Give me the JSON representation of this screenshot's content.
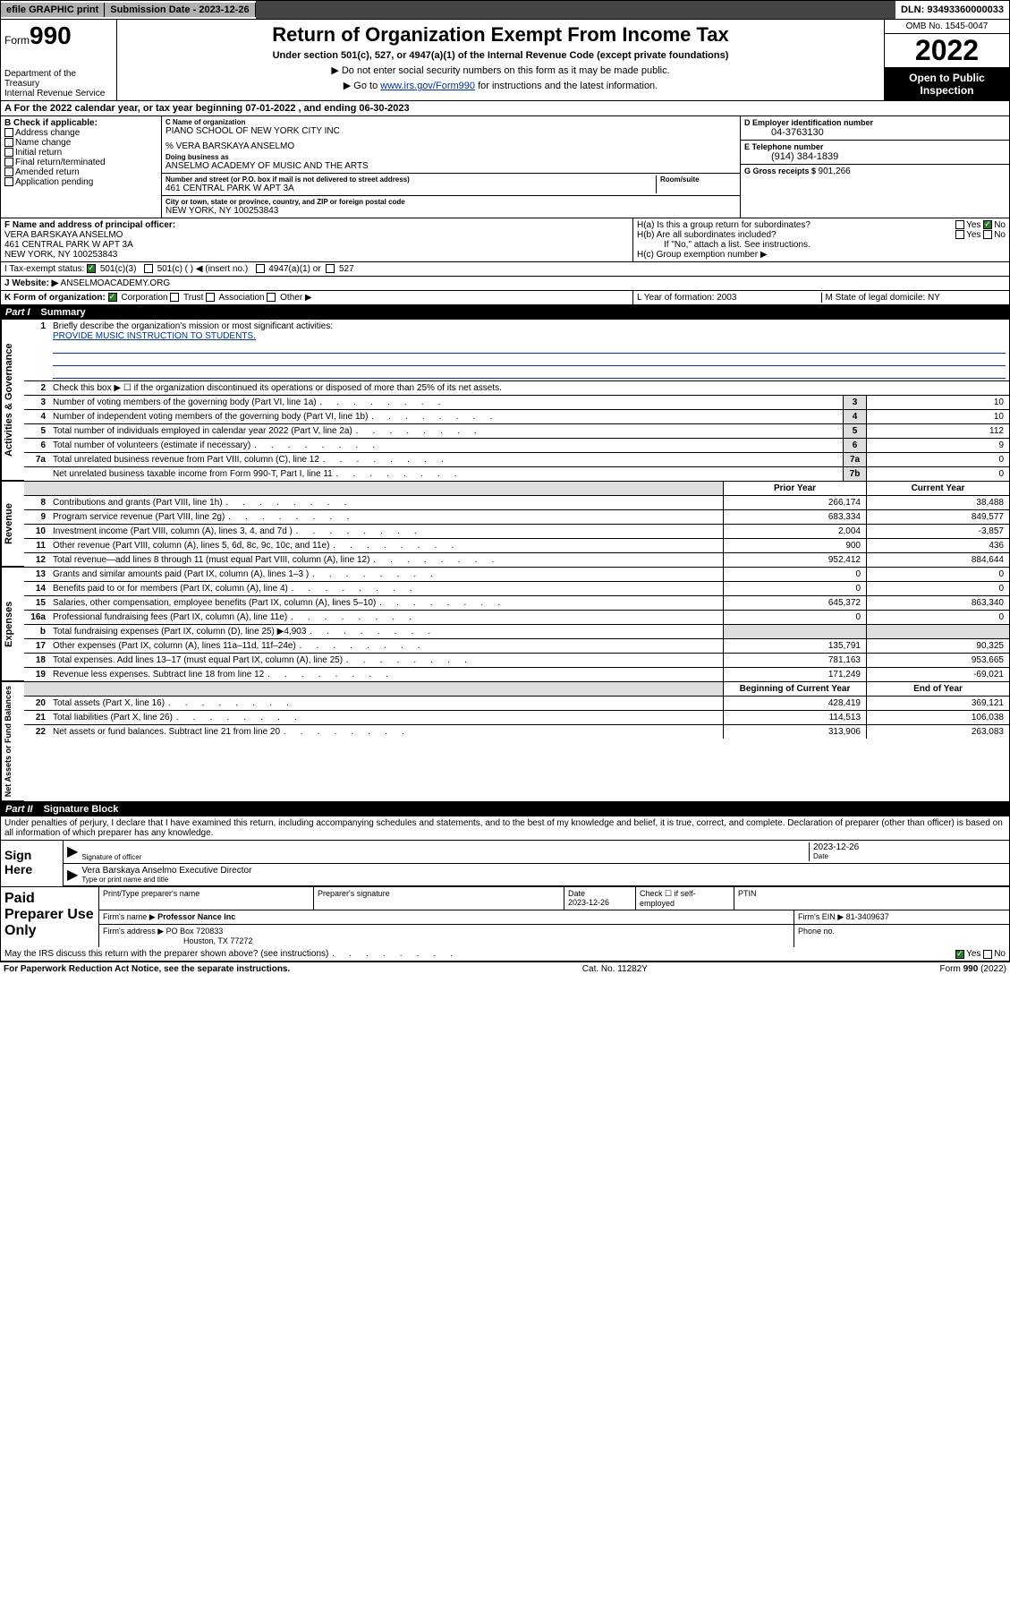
{
  "topbar": {
    "efile": "efile GRAPHIC print",
    "sub_label": "Submission Date - ",
    "sub_date": "2023-12-26",
    "dln": "DLN: 93493360000033"
  },
  "hdr": {
    "form_word": "Form",
    "form_num": "990",
    "dept": "Department of the Treasury\nInternal Revenue Service",
    "title": "Return of Organization Exempt From Income Tax",
    "sub1": "Under section 501(c), 527, or 4947(a)(1) of the Internal Revenue Code (except private foundations)",
    "sub2": "Do not enter social security numbers on this form as it may be made public.",
    "sub3_pre": "Go to ",
    "sub3_link": "www.irs.gov/Form990",
    "sub3_post": " for instructions and the latest information.",
    "omb": "OMB No. 1545-0047",
    "year": "2022",
    "open": "Open to Public Inspection"
  },
  "lineA": "A For the 2022 calendar year, or tax year beginning 07-01-2022   , and ending 06-30-2023",
  "checkB": {
    "label": "B Check if applicable:",
    "items": [
      "Address change",
      "Name change",
      "Initial return",
      "Final return/terminated",
      "Amended return",
      "Application pending"
    ]
  },
  "nameblock": {
    "c_label": "C Name of organization",
    "c_val": "PIANO SCHOOL OF NEW YORK CITY INC",
    "care": "% VERA BARSKAYA ANSELMO",
    "dba_label": "Doing business as",
    "dba_val": "ANSELMO ACADEMY OF MUSIC AND THE ARTS",
    "addr_label": "Number and street (or P.O. box if mail is not delivered to street address)",
    "addr_val": "461 CENTRAL PARK W APT 3A",
    "room_label": "Room/suite",
    "city_label": "City or town, state or province, country, and ZIP or foreign postal code",
    "city_val": "NEW YORK, NY  100253843",
    "f_label": "F Name and address of principal officer:",
    "f_val": "VERA BARSKAYA ANSELMO\n461 CENTRAL PARK W APT 3A\nNEW YORK, NY  100253843"
  },
  "rightcol": {
    "d_label": "D Employer identification number",
    "d_val": "04-3763130",
    "e_label": "E Telephone number",
    "e_val": "(914) 384-1839",
    "g_label": "G Gross receipts $ ",
    "g_val": "901,266",
    "ha": "H(a)  Is this a group return for subordinates?",
    "hb": "H(b)  Are all subordinates included?",
    "h_note": "If \"No,\" attach a list. See instructions.",
    "hc": "H(c)  Group exemption number ▶",
    "yes": "Yes",
    "no": "No"
  },
  "itax": {
    "label": "I   Tax-exempt status:",
    "o1": "501(c)(3)",
    "o2": "501(c) (  ) ◀ (insert no.)",
    "o3": "4947(a)(1) or",
    "o4": "527"
  },
  "jweb": {
    "label": "J   Website: ▶",
    "val": "ANSELMOACADEMY.ORG"
  },
  "kform": {
    "label": "K Form of organization:",
    "opts": [
      "Corporation",
      "Trust",
      "Association",
      "Other ▶"
    ]
  },
  "lm": {
    "l": "L Year of formation: 2003",
    "m": "M State of legal domicile: NY"
  },
  "part1": {
    "num": "Part I",
    "title": "Summary"
  },
  "summary": {
    "gov_label": "Activities & Governance",
    "rev_label": "Revenue",
    "exp_label": "Expenses",
    "net_label": "Net Assets or Fund Balances",
    "line1": "Briefly describe the organization's mission or most significant activities:",
    "line1_val": "PROVIDE MUSIC INSTRUCTION TO STUDENTS.",
    "line2": "Check this box ▶ ☐  if the organization discontinued its operations or disposed of more than 25% of its net assets.",
    "rows_gov": [
      {
        "n": "3",
        "t": "Number of voting members of the governing body (Part VI, line 1a)",
        "b": "3",
        "v": "10"
      },
      {
        "n": "4",
        "t": "Number of independent voting members of the governing body (Part VI, line 1b)",
        "b": "4",
        "v": "10"
      },
      {
        "n": "5",
        "t": "Total number of individuals employed in calendar year 2022 (Part V, line 2a)",
        "b": "5",
        "v": "112"
      },
      {
        "n": "6",
        "t": "Total number of volunteers (estimate if necessary)",
        "b": "6",
        "v": "9"
      },
      {
        "n": "7a",
        "t": "Total unrelated business revenue from Part VIII, column (C), line 12",
        "b": "7a",
        "v": "0"
      },
      {
        "n": "",
        "t": "Net unrelated business taxable income from Form 990-T, Part I, line 11",
        "b": "7b",
        "v": "0"
      }
    ],
    "hdr_prior": "Prior Year",
    "hdr_curr": "Current Year",
    "rows_rev": [
      {
        "n": "8",
        "t": "Contributions and grants (Part VIII, line 1h)",
        "p": "266,174",
        "c": "38,488"
      },
      {
        "n": "9",
        "t": "Program service revenue (Part VIII, line 2g)",
        "p": "683,334",
        "c": "849,577"
      },
      {
        "n": "10",
        "t": "Investment income (Part VIII, column (A), lines 3, 4, and 7d )",
        "p": "2,004",
        "c": "-3,857"
      },
      {
        "n": "11",
        "t": "Other revenue (Part VIII, column (A), lines 5, 6d, 8c, 9c, 10c, and 11e)",
        "p": "900",
        "c": "436"
      },
      {
        "n": "12",
        "t": "Total revenue—add lines 8 through 11 (must equal Part VIII, column (A), line 12)",
        "p": "952,412",
        "c": "884,644"
      }
    ],
    "rows_exp": [
      {
        "n": "13",
        "t": "Grants and similar amounts paid (Part IX, column (A), lines 1–3 )",
        "p": "0",
        "c": "0"
      },
      {
        "n": "14",
        "t": "Benefits paid to or for members (Part IX, column (A), line 4)",
        "p": "0",
        "c": "0"
      },
      {
        "n": "15",
        "t": "Salaries, other compensation, employee benefits (Part IX, column (A), lines 5–10)",
        "p": "645,372",
        "c": "863,340"
      },
      {
        "n": "16a",
        "t": "Professional fundraising fees (Part IX, column (A), line 11e)",
        "p": "0",
        "c": "0"
      },
      {
        "n": "b",
        "t": "Total fundraising expenses (Part IX, column (D), line 25) ▶4,903",
        "p": "",
        "c": "",
        "shade": true
      },
      {
        "n": "17",
        "t": "Other expenses (Part IX, column (A), lines 11a–11d, 11f–24e)",
        "p": "135,791",
        "c": "90,325"
      },
      {
        "n": "18",
        "t": "Total expenses. Add lines 13–17 (must equal Part IX, column (A), line 25)",
        "p": "781,163",
        "c": "953,665"
      },
      {
        "n": "19",
        "t": "Revenue less expenses. Subtract line 18 from line 12",
        "p": "171,249",
        "c": "-69,021"
      }
    ],
    "hdr_beg": "Beginning of Current Year",
    "hdr_end": "End of Year",
    "rows_net": [
      {
        "n": "20",
        "t": "Total assets (Part X, line 16)",
        "p": "428,419",
        "c": "369,121"
      },
      {
        "n": "21",
        "t": "Total liabilities (Part X, line 26)",
        "p": "114,513",
        "c": "106,038"
      },
      {
        "n": "22",
        "t": "Net assets or fund balances. Subtract line 21 from line 20",
        "p": "313,906",
        "c": "263,083"
      }
    ]
  },
  "part2": {
    "num": "Part II",
    "title": "Signature Block"
  },
  "sig": {
    "decl": "Under penalties of perjury, I declare that I have examined this return, including accompanying schedules and statements, and to the best of my knowledge and belief, it is true, correct, and complete. Declaration of preparer (other than officer) is based on all information of which preparer has any knowledge.",
    "sign_here": "Sign Here",
    "sig_of_officer": "Signature of officer",
    "date_label": "Date",
    "date_val": "2023-12-26",
    "name_title": "Vera Barskaya Anselmo  Executive Director",
    "type_label": "Type or print name and title"
  },
  "prep": {
    "title": "Paid Preparer Use Only",
    "h1": "Print/Type preparer's name",
    "h2": "Preparer's signature",
    "h3": "Date",
    "h3_val": "2023-12-26",
    "h4": "Check ☐ if self-employed",
    "h5": "PTIN",
    "firm_name_l": "Firm's name    ▶",
    "firm_name": "Professor Nance Inc",
    "firm_ein_l": "Firm's EIN ▶",
    "firm_ein": "81-3409637",
    "firm_addr_l": "Firm's address ▶",
    "firm_addr1": "PO Box 720833",
    "firm_addr2": "Houston, TX  77272",
    "phone_l": "Phone no.",
    "discuss": "May the IRS discuss this return with the preparer shown above? (see instructions)"
  },
  "footer": {
    "l": "For Paperwork Reduction Act Notice, see the separate instructions.",
    "c": "Cat. No. 11282Y",
    "r": "Form 990 (2022)"
  }
}
